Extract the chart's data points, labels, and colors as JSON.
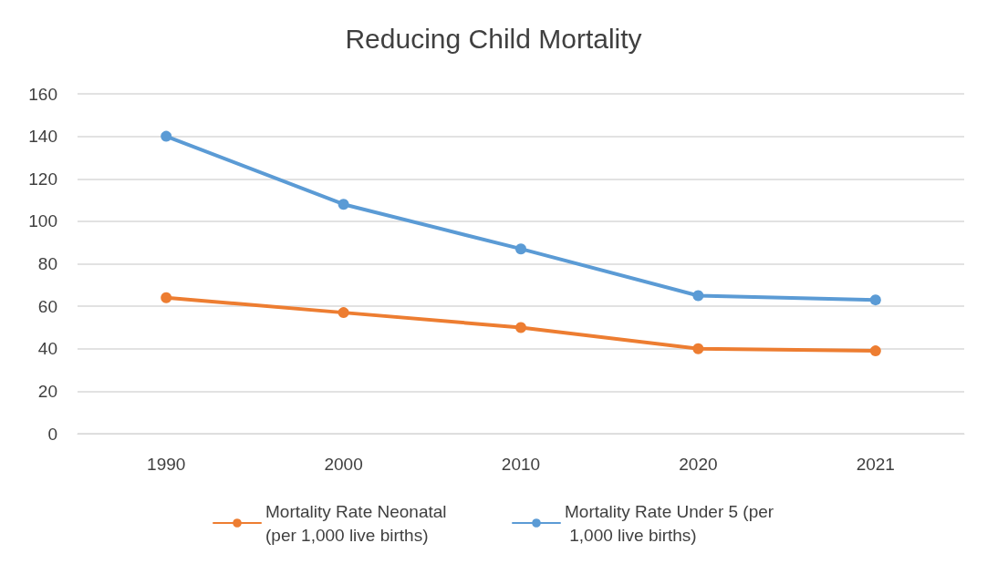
{
  "chart_data": {
    "type": "line",
    "title": "Reducing Child Mortality",
    "categories": [
      "1990",
      "2000",
      "2010",
      "2020",
      "2021"
    ],
    "series": [
      {
        "name": "Mortality Rate Neonatal (per 1,000 live births)",
        "color": "#ed7d31",
        "values": [
          64,
          57,
          50,
          40,
          39
        ]
      },
      {
        "name": "Mortality Rate Under 5 (per 1,000 live births)",
        "color": "#5b9bd5",
        "values": [
          140,
          108,
          87,
          65,
          63
        ]
      }
    ],
    "ylim": [
      0,
      160
    ],
    "yticks": [
      0,
      20,
      40,
      60,
      80,
      100,
      120,
      140,
      160
    ],
    "grid": "y",
    "legend": "bottom",
    "marker": "circle",
    "line_style": "solid"
  }
}
